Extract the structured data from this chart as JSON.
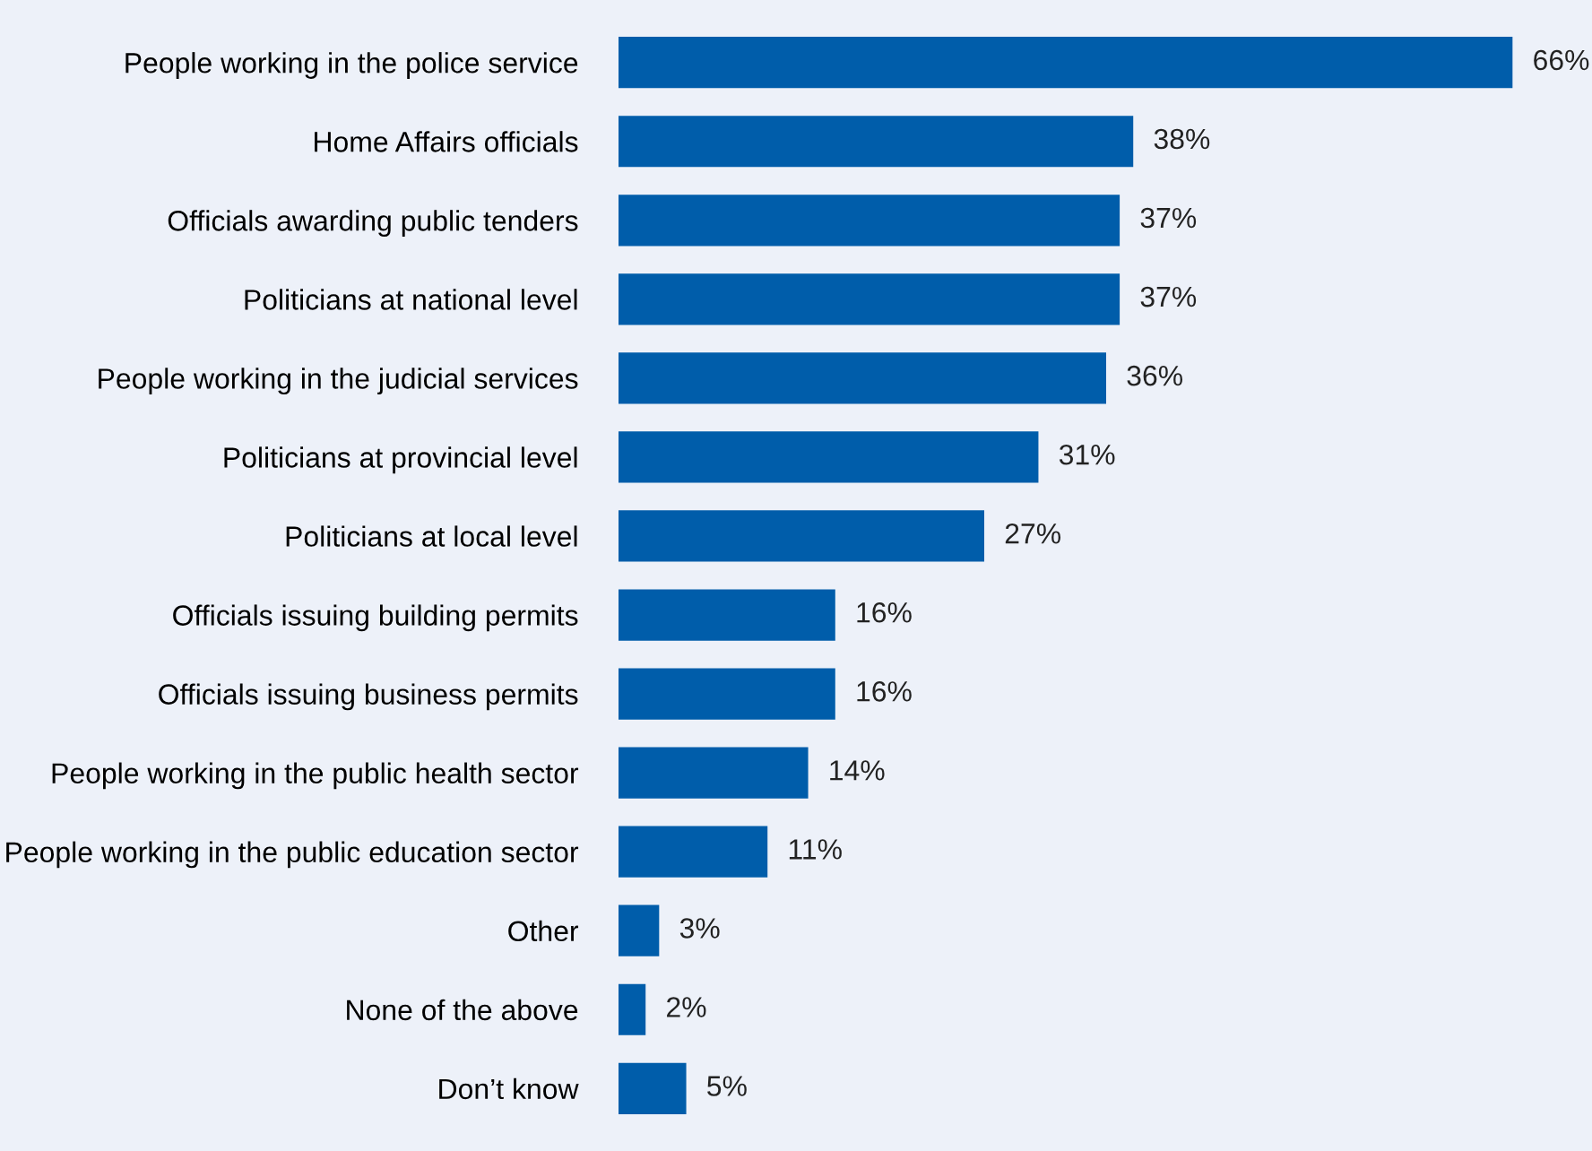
{
  "chart_data": {
    "type": "bar",
    "orientation": "horizontal",
    "categories": [
      "People working in the police service",
      "Home Affairs officials",
      "Officials awarding public tenders",
      "Politicians at national level",
      "People working in the judicial services",
      "Politicians at provincial level",
      "Politicians at local level",
      "Officials issuing building permits",
      "Officials issuing business permits",
      "People working in the public health sector",
      "People working in the public education sector",
      "Other",
      "None of the above",
      "Don’t know"
    ],
    "values": [
      66,
      38,
      37,
      37,
      36,
      31,
      27,
      16,
      16,
      14,
      11,
      3,
      2,
      5
    ],
    "value_labels": [
      "66%",
      "38%",
      "37%",
      "37%",
      "36%",
      "31%",
      "27%",
      "16%",
      "16%",
      "14%",
      "11%",
      "3%",
      "2%",
      "5%"
    ],
    "color": "#005daa"
  }
}
